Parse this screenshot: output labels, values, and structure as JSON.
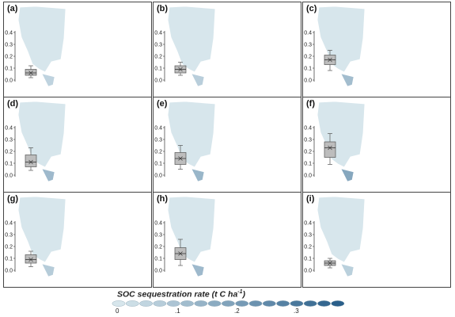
{
  "panels": [
    {
      "label": "(a)",
      "intensity": 0.25,
      "box": {
        "min": 0.02,
        "q1": 0.04,
        "median": 0.06,
        "q3": 0.09,
        "max": 0.12
      }
    },
    {
      "label": "(b)",
      "intensity": 0.32,
      "box": {
        "min": 0.04,
        "q1": 0.06,
        "median": 0.09,
        "q3": 0.12,
        "max": 0.15
      }
    },
    {
      "label": "(c)",
      "intensity": 0.55,
      "box": {
        "min": 0.08,
        "q1": 0.13,
        "median": 0.17,
        "q3": 0.21,
        "max": 0.25
      }
    },
    {
      "label": "(d)",
      "intensity": 0.6,
      "box": {
        "min": 0.04,
        "q1": 0.07,
        "median": 0.11,
        "q3": 0.17,
        "max": 0.23
      }
    },
    {
      "label": "(e)",
      "intensity": 0.65,
      "box": {
        "min": 0.05,
        "q1": 0.09,
        "median": 0.14,
        "q3": 0.19,
        "max": 0.25
      }
    },
    {
      "label": "(f)",
      "intensity": 0.85,
      "box": {
        "min": 0.09,
        "q1": 0.15,
        "median": 0.23,
        "q3": 0.28,
        "max": 0.35
      }
    },
    {
      "label": "(g)",
      "intensity": 0.35,
      "box": {
        "min": 0.03,
        "q1": 0.06,
        "median": 0.09,
        "q3": 0.13,
        "max": 0.16
      }
    },
    {
      "label": "(h)",
      "intensity": 0.6,
      "box": {
        "min": 0.04,
        "q1": 0.09,
        "median": 0.14,
        "q3": 0.19,
        "max": 0.26
      }
    },
    {
      "label": "(i)",
      "intensity": 0.3,
      "box": {
        "min": 0.02,
        "q1": 0.04,
        "median": 0.06,
        "q3": 0.08,
        "max": 0.1
      }
    }
  ],
  "axis": {
    "ticks": [
      "0.0",
      "0.1",
      "0.2",
      "0.3",
      "0.4"
    ]
  },
  "legend": {
    "title": "SOC sequestration rate (t C ha",
    "title_sup": "-1",
    "title_end": ")",
    "ticks": [
      "0",
      ".1",
      ".2",
      ".3"
    ],
    "color_low": "#d7e6ec",
    "color_high": "#2a5f8a"
  },
  "chart_data": {
    "type": "box",
    "ylim": [
      0,
      0.4
    ],
    "series": [
      {
        "name": "(a)",
        "min": 0.02,
        "q1": 0.04,
        "median": 0.06,
        "q3": 0.09,
        "max": 0.12
      },
      {
        "name": "(b)",
        "min": 0.04,
        "q1": 0.06,
        "median": 0.09,
        "q3": 0.12,
        "max": 0.15
      },
      {
        "name": "(c)",
        "min": 0.08,
        "q1": 0.13,
        "median": 0.17,
        "q3": 0.21,
        "max": 0.25
      },
      {
        "name": "(d)",
        "min": 0.04,
        "q1": 0.07,
        "median": 0.11,
        "q3": 0.17,
        "max": 0.23
      },
      {
        "name": "(e)",
        "min": 0.05,
        "q1": 0.09,
        "median": 0.14,
        "q3": 0.19,
        "max": 0.25
      },
      {
        "name": "(f)",
        "min": 0.09,
        "q1": 0.15,
        "median": 0.23,
        "q3": 0.28,
        "max": 0.35
      },
      {
        "name": "(g)",
        "min": 0.03,
        "q1": 0.06,
        "median": 0.09,
        "q3": 0.13,
        "max": 0.16
      },
      {
        "name": "(h)",
        "min": 0.04,
        "q1": 0.09,
        "median": 0.14,
        "q3": 0.19,
        "max": 0.26
      },
      {
        "name": "(i)",
        "min": 0.02,
        "q1": 0.04,
        "median": 0.06,
        "q3": 0.08,
        "max": 0.1
      }
    ]
  }
}
